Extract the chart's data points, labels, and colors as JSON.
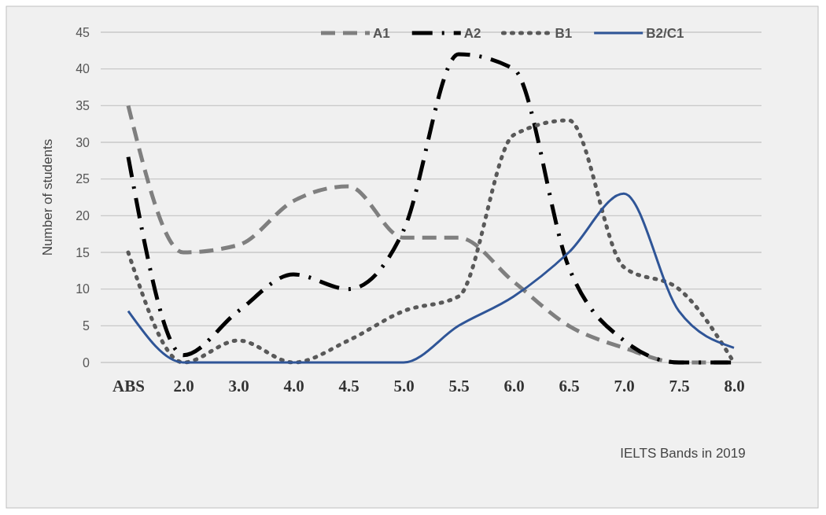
{
  "chart_data": {
    "type": "line",
    "xlabel": "IELTS Bands in 2019",
    "ylabel": "Number of students",
    "categories": [
      "ABS",
      "2.0",
      "3.0",
      "4.0",
      "4.5",
      "5.0",
      "5.5",
      "6.0",
      "6.5",
      "7.0",
      "7.5",
      "8.0"
    ],
    "ylim": [
      0,
      45
    ],
    "yticks": [
      0,
      5,
      10,
      15,
      20,
      25,
      30,
      35,
      40,
      45
    ],
    "grid": "y",
    "legend": "top right",
    "marker": "none",
    "series": [
      {
        "name": "A1",
        "color": "#7f7f7f",
        "line_style": "dashed",
        "values": [
          35,
          15,
          16,
          22,
          24,
          17,
          17,
          11,
          5,
          2,
          0,
          0
        ]
      },
      {
        "name": "A2",
        "color": "#000000",
        "line_style": "dashed",
        "values": [
          28,
          1,
          7,
          12,
          10,
          18,
          42,
          40,
          13,
          3,
          0,
          0
        ]
      },
      {
        "name": "B1",
        "color": "#595959",
        "line_style": "dotted",
        "values": [
          15,
          0,
          3,
          0,
          3,
          7,
          9,
          31,
          33,
          13,
          10,
          0
        ]
      },
      {
        "name": "B2/C1",
        "color": "#2f5597",
        "line_style": "solid",
        "values": [
          7,
          0,
          0,
          0,
          0,
          0,
          5,
          9,
          15,
          23,
          7,
          2
        ]
      }
    ]
  }
}
